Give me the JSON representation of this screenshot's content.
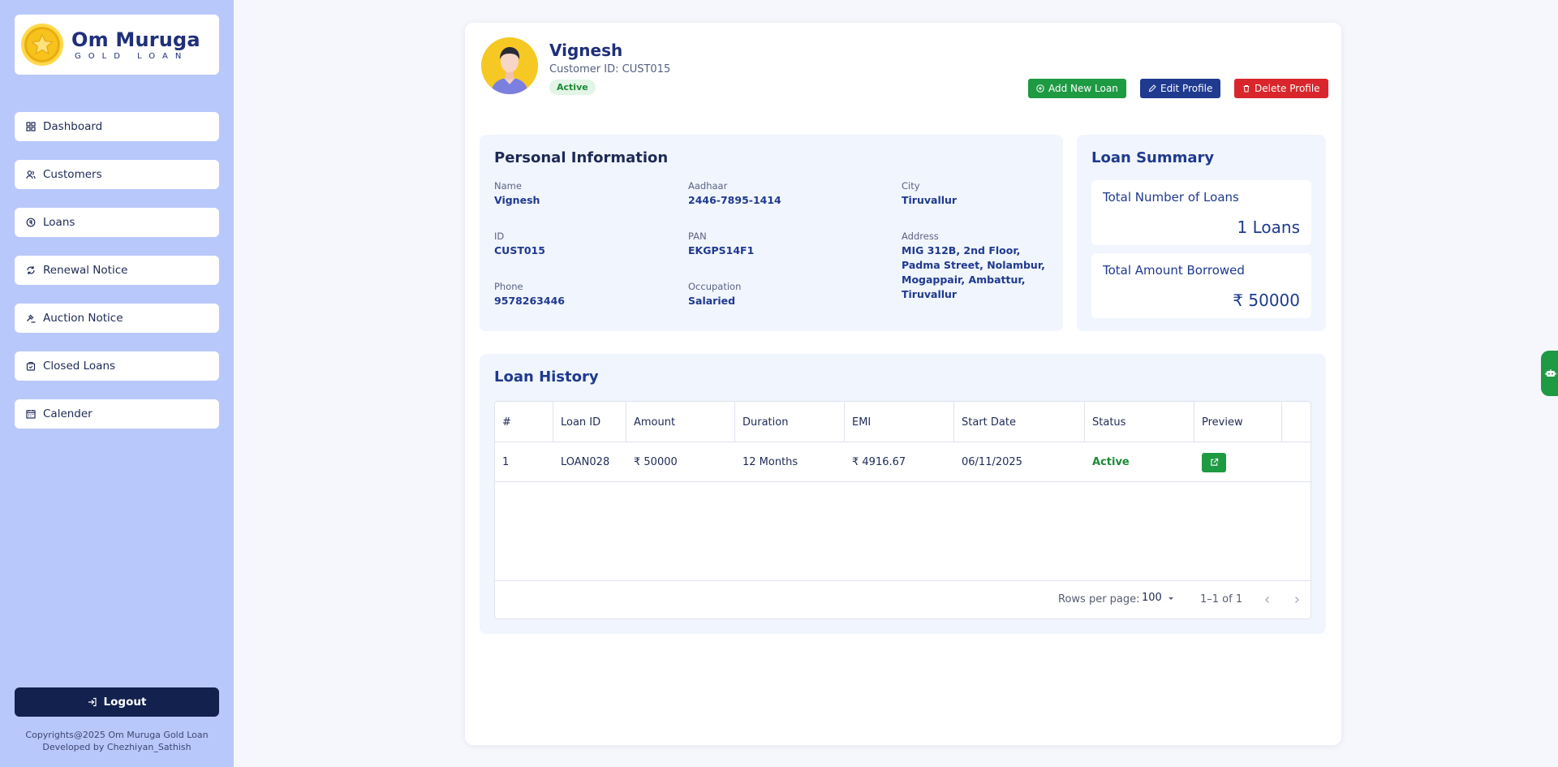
{
  "brand": {
    "title": "Om Muruga",
    "subtitle": "GOLD LOAN"
  },
  "sidebar": {
    "items": [
      {
        "label": "Dashboard",
        "icon": "dashboard-icon"
      },
      {
        "label": "Customers",
        "icon": "users-icon"
      },
      {
        "label": "Loans",
        "icon": "loan-icon"
      },
      {
        "label": "Renewal Notice",
        "icon": "renew-icon"
      },
      {
        "label": "Auction Notice",
        "icon": "gavel-icon"
      },
      {
        "label": "Closed Loans",
        "icon": "closed-icon"
      },
      {
        "label": "Calender",
        "icon": "calendar-icon"
      }
    ],
    "logout": "Logout",
    "copyright_line1": "Copyrights@2025 Om Muruga Gold Loan",
    "copyright_line2": "Developed by Chezhiyan_Sathish"
  },
  "profile": {
    "name": "Vignesh",
    "customer_id": "Customer ID: CUST015",
    "status": "Active",
    "buttons": {
      "add": "Add New Loan",
      "edit": "Edit Profile",
      "delete": "Delete Profile"
    }
  },
  "personal": {
    "title": "Personal Information",
    "fields": {
      "name": {
        "label": "Name",
        "value": "Vignesh"
      },
      "id": {
        "label": "ID",
        "value": "CUST015"
      },
      "phone": {
        "label": "Phone",
        "value": "9578263446"
      },
      "aadhaar": {
        "label": "Aadhaar",
        "value": "2446-7895-1414"
      },
      "pan": {
        "label": "PAN",
        "value": "EKGPS14F1"
      },
      "occupation": {
        "label": "Occupation",
        "value": "Salaried"
      },
      "city": {
        "label": "City",
        "value": "Tiruvallur"
      },
      "address": {
        "label": "Address",
        "value": "MIG 312B, 2nd Floor, Padma Street, Nolambur, Mogappair, Ambattur, Tiruvallur"
      }
    }
  },
  "summary": {
    "title": "Loan Summary",
    "loans_label": "Total Number of Loans",
    "loans_value": "1 Loans",
    "amount_label": "Total Amount Borrowed",
    "amount_value": "₹ 50000"
  },
  "history": {
    "title": "Loan History",
    "columns": [
      "#",
      "Loan ID",
      "Amount",
      "Duration",
      "EMI",
      "Start Date",
      "Status",
      "Preview"
    ],
    "rows": [
      {
        "num": "1",
        "loan_id": "LOAN028",
        "amount": "₹ 50000",
        "duration": "12 Months",
        "emi": "₹ 4916.67",
        "start_date": "06/11/2025",
        "status": "Active"
      }
    ],
    "footer": {
      "rows_per_page_label": "Rows per page:",
      "rows_per_page": "100",
      "range": "1–1 of 1"
    }
  },
  "colors": {
    "accent_green": "#1e9a43",
    "accent_blue": "#1f3a8f",
    "accent_red": "#d8262c",
    "sidebar_bg": "#b9c8fb"
  }
}
